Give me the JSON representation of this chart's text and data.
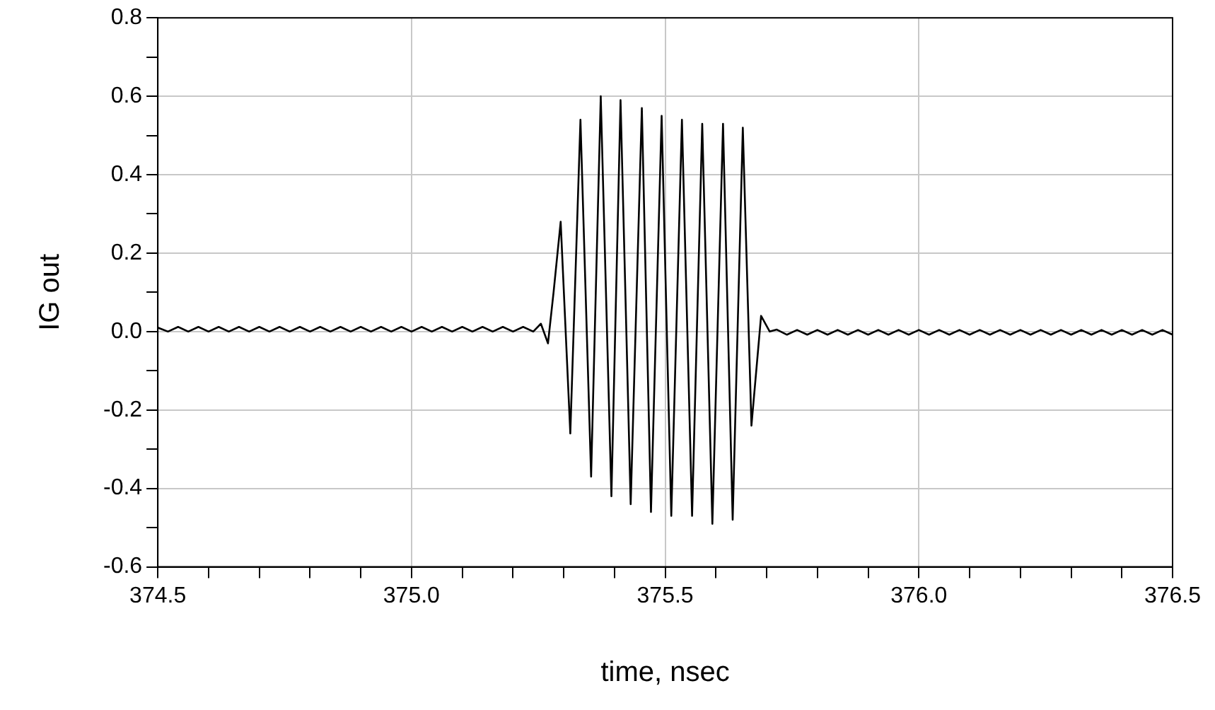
{
  "chart_data": {
    "type": "line",
    "xlabel": "time, nsec",
    "ylabel": "IG out",
    "xlim": [
      374.5,
      376.5
    ],
    "xticks": [
      374.5,
      {
        "value": 374.6,
        "label": null
      },
      {
        "value": 374.7,
        "label": null
      },
      {
        "value": 374.8,
        "label": null
      },
      {
        "value": 374.9,
        "label": null
      },
      {
        "value": 375,
        "label": "375.0"
      },
      {
        "value": 375.1,
        "label": null
      },
      {
        "value": 375.2,
        "label": null
      },
      {
        "value": 375.3,
        "label": null
      },
      {
        "value": 375.4,
        "label": null
      },
      375.5,
      {
        "value": 375.6,
        "label": null
      },
      {
        "value": 375.7,
        "label": null
      },
      {
        "value": 375.8,
        "label": null
      },
      {
        "value": 375.9,
        "label": null
      },
      {
        "value": 376,
        "label": "376.0"
      },
      {
        "value": 376.1,
        "label": null
      },
      {
        "value": 376.2,
        "label": null
      },
      {
        "value": 376.3,
        "label": null
      },
      {
        "value": 376.4,
        "label": null
      },
      376.5
    ],
    "ylim": [
      -0.6,
      0.8
    ],
    "yticks": [
      -0.6,
      {
        "value": -0.5,
        "label": null
      },
      -0.4,
      {
        "value": -0.3,
        "label": null
      },
      -0.2,
      {
        "value": -0.1,
        "label": null
      },
      {
        "value": 0,
        "label": "0.0"
      },
      {
        "value": 0.1,
        "label": null
      },
      0.2,
      {
        "value": 0.3,
        "label": null
      },
      0.4,
      {
        "value": 0.5,
        "label": null
      },
      0.6,
      {
        "value": 0.7,
        "label": null
      },
      0.8
    ],
    "grid": true,
    "legend": false,
    "marker": "none",
    "line_style": "solid",
    "series": [
      {
        "color": "#000000",
        "x": [
          374.5,
          374.52,
          374.54,
          374.56,
          374.58,
          374.6,
          374.62,
          374.64,
          374.66,
          374.68,
          374.7,
          374.72,
          374.74,
          374.76,
          374.78,
          374.8,
          374.82,
          374.84,
          374.86,
          374.88,
          374.9,
          374.92,
          374.94,
          374.96,
          374.98,
          375.0,
          375.02,
          375.04,
          375.06,
          375.08,
          375.1,
          375.12,
          375.14,
          375.16,
          375.18,
          375.2,
          375.22,
          375.24,
          375.255,
          375.269,
          375.28,
          375.294,
          375.313,
          375.333,
          375.354,
          375.373,
          375.394,
          375.412,
          375.432,
          375.454,
          375.472,
          375.493,
          375.512,
          375.533,
          375.553,
          375.573,
          375.593,
          375.614,
          375.633,
          375.653,
          375.67,
          375.689,
          375.706,
          375.72,
          375.74,
          375.76,
          375.78,
          375.8,
          375.82,
          375.84,
          375.86,
          375.88,
          375.9,
          375.92,
          375.94,
          375.96,
          375.98,
          376.0,
          376.02,
          376.04,
          376.06,
          376.08,
          376.1,
          376.12,
          376.14,
          376.16,
          376.18,
          376.2,
          376.22,
          376.24,
          376.26,
          376.28,
          376.3,
          376.32,
          376.34,
          376.36,
          376.38,
          376.4,
          376.42,
          376.44,
          376.46,
          376.48,
          376.5
        ],
        "values": [
          0.01,
          0.0,
          0.012,
          0.0,
          0.012,
          0.0,
          0.012,
          0.0,
          0.012,
          0.0,
          0.012,
          0.0,
          0.012,
          0.0,
          0.012,
          0.0,
          0.012,
          0.0,
          0.012,
          0.0,
          0.012,
          0.0,
          0.012,
          0.0,
          0.012,
          0.0,
          0.012,
          0.0,
          0.012,
          0.0,
          0.012,
          0.0,
          0.012,
          0.0,
          0.012,
          0.0,
          0.012,
          0.0,
          0.02,
          -0.03,
          0.1,
          0.28,
          -0.26,
          0.54,
          -0.37,
          0.6,
          -0.42,
          0.59,
          -0.44,
          0.57,
          -0.46,
          0.55,
          -0.47,
          0.54,
          -0.47,
          0.53,
          -0.49,
          0.53,
          -0.48,
          0.52,
          -0.24,
          0.04,
          0.0,
          0.005,
          -0.008,
          0.004,
          -0.008,
          0.004,
          -0.008,
          0.004,
          -0.008,
          0.004,
          -0.008,
          0.004,
          -0.008,
          0.004,
          -0.008,
          0.004,
          -0.008,
          0.004,
          -0.008,
          0.004,
          -0.008,
          0.004,
          -0.008,
          0.004,
          -0.008,
          0.004,
          -0.008,
          0.004,
          -0.008,
          0.004,
          -0.008,
          0.004,
          -0.008,
          0.004,
          -0.008,
          0.004,
          -0.008,
          0.004,
          -0.008,
          0.004,
          -0.008
        ]
      }
    ]
  }
}
